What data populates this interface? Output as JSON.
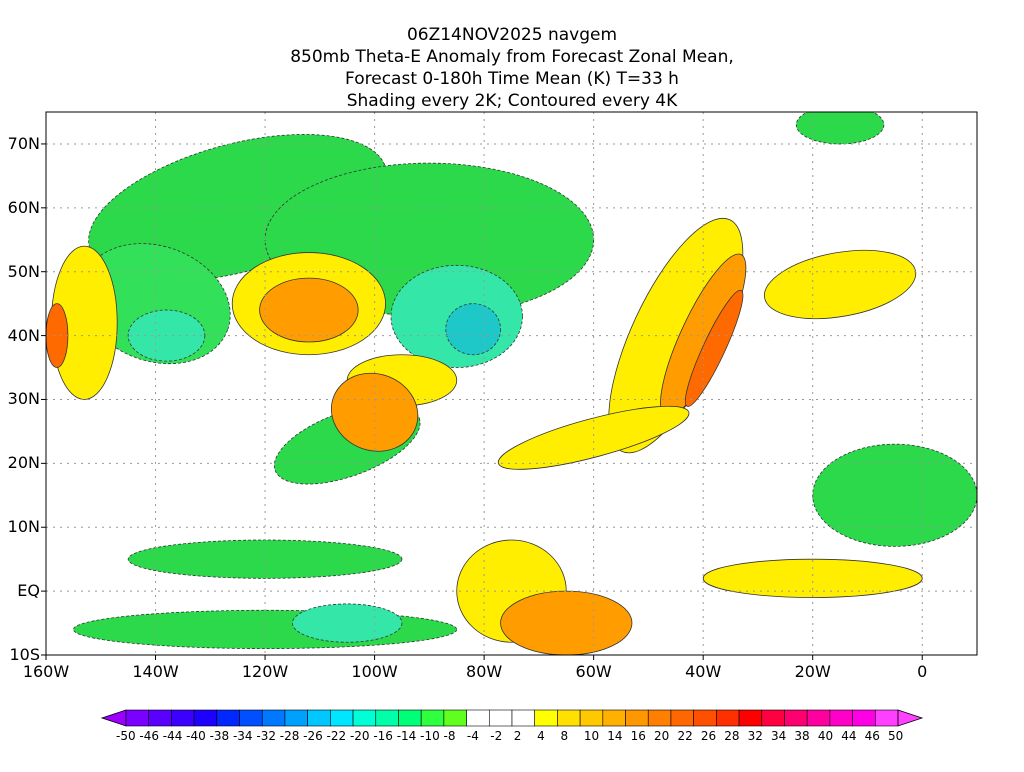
{
  "title_lines": [
    "06Z14NOV2025 navgem",
    "850mb Theta-E Anomaly from Forecast Zonal Mean,",
    "Forecast 0-180h Time Mean (K) T=33 h",
    "Shading every 2K; Contoured every 4K"
  ],
  "map": {
    "projection": "cylindrical equidistant",
    "lon_range": [
      -160,
      10
    ],
    "lat_range": [
      -10,
      75
    ],
    "lat_ticks": [
      "70N",
      "60N",
      "50N",
      "40N",
      "30N",
      "20N",
      "10N",
      "EQ",
      "10S"
    ],
    "lon_ticks": [
      "160W",
      "140W",
      "120W",
      "100W",
      "80W",
      "60W",
      "40W",
      "20W",
      "0"
    ],
    "lat_values": [
      70,
      60,
      50,
      40,
      30,
      20,
      10,
      0,
      -10
    ],
    "lon_values": [
      -160,
      -140,
      -120,
      -100,
      -80,
      -60,
      -40,
      -20,
      0
    ],
    "gridlines": "dotted",
    "field": "850mb Theta-E anomaly (K)"
  },
  "colorbar": {
    "labels": [
      "-50",
      "-46",
      "-44",
      "-40",
      "-38",
      "-34",
      "-32",
      "-28",
      "-26",
      "-22",
      "-20",
      "-16",
      "-14",
      "-10",
      "-8",
      "-4",
      "-2",
      "2",
      "4",
      "8",
      "10",
      "14",
      "16",
      "20",
      "22",
      "26",
      "28",
      "32",
      "34",
      "38",
      "40",
      "44",
      "46",
      "50"
    ],
    "colors": [
      "#7a00ff",
      "#5a00ff",
      "#3c00ff",
      "#1e00ff",
      "#0028ff",
      "#0050ff",
      "#0078ff",
      "#00a0ff",
      "#00c8ff",
      "#00e6ff",
      "#00ffd6",
      "#00ffa8",
      "#00ff78",
      "#30ff40",
      "#60ff20",
      "#ffffff",
      "#ffffff",
      "#ffffff",
      "#ffff00",
      "#ffe000",
      "#ffc800",
      "#ffb000",
      "#ff9800",
      "#ff8000",
      "#ff6800",
      "#ff5000",
      "#ff3000",
      "#ff0000",
      "#ff0040",
      "#ff0070",
      "#ff00a0",
      "#ff00c8",
      "#ff00e6",
      "#ff40ff"
    ]
  },
  "regions": [
    {
      "color": "#2bd94a",
      "lon": -125,
      "lat": 60,
      "rx": 28,
      "ry": 10,
      "rot": -15
    },
    {
      "color": "#2bd94a",
      "lon": -90,
      "lat": 55,
      "rx": 30,
      "ry": 12,
      "rot": 0
    },
    {
      "color": "#33e05a",
      "lon": -140,
      "lat": 45,
      "rx": 14,
      "ry": 9,
      "rot": 20
    },
    {
      "color": "#34e6a8",
      "lon": -138,
      "lat": 40,
      "rx": 7,
      "ry": 4,
      "rot": 0
    },
    {
      "color": "#34e6a8",
      "lon": -85,
      "lat": 43,
      "rx": 12,
      "ry": 8,
      "rot": 0
    },
    {
      "color": "#1ec8c8",
      "lon": -82,
      "lat": 41,
      "rx": 5,
      "ry": 4,
      "rot": 0
    },
    {
      "color": "#2bd94a",
      "lon": -105,
      "lat": 23,
      "rx": 14,
      "ry": 5,
      "rot": -20
    },
    {
      "color": "#2bd94a",
      "lon": -120,
      "lat": 5,
      "rx": 25,
      "ry": 3,
      "rot": 0
    },
    {
      "color": "#2bd94a",
      "lon": -120,
      "lat": -6,
      "rx": 35,
      "ry": 3,
      "rot": 0
    },
    {
      "color": "#34e6a8",
      "lon": -105,
      "lat": -5,
      "rx": 10,
      "ry": 3,
      "rot": 0
    },
    {
      "color": "#2bd94a",
      "lon": -5,
      "lat": 15,
      "rx": 15,
      "ry": 8,
      "rot": 0
    },
    {
      "color": "#2bd94a",
      "lon": -15,
      "lat": 73,
      "rx": 8,
      "ry": 3,
      "rot": 0
    },
    {
      "color": "#ffee00",
      "lon": -112,
      "lat": 45,
      "rx": 14,
      "ry": 8,
      "rot": 0
    },
    {
      "color": "#ff9d00",
      "lon": -112,
      "lat": 44,
      "rx": 9,
      "ry": 5,
      "rot": 0
    },
    {
      "color": "#ffee00",
      "lon": -95,
      "lat": 33,
      "rx": 10,
      "ry": 4,
      "rot": 0
    },
    {
      "color": "#ff9d00",
      "lon": -100,
      "lat": 28,
      "rx": 8,
      "ry": 6,
      "rot": 20
    },
    {
      "color": "#ffee00",
      "lon": -45,
      "lat": 40,
      "rx": 8,
      "ry": 20,
      "rot": 25
    },
    {
      "color": "#ff9d00",
      "lon": -40,
      "lat": 40,
      "rx": 4,
      "ry": 14,
      "rot": 25
    },
    {
      "color": "#ff6a00",
      "lon": -38,
      "lat": 38,
      "rx": 2,
      "ry": 10,
      "rot": 25
    },
    {
      "color": "#ffee00",
      "lon": -15,
      "lat": 48,
      "rx": 14,
      "ry": 5,
      "rot": -10
    },
    {
      "color": "#ffee00",
      "lon": -153,
      "lat": 42,
      "rx": 6,
      "ry": 12,
      "rot": 0
    },
    {
      "color": "#ff6a00",
      "lon": -158,
      "lat": 40,
      "rx": 2,
      "ry": 5,
      "rot": 0
    },
    {
      "color": "#ffee00",
      "lon": -75,
      "lat": 0,
      "rx": 10,
      "ry": 8,
      "rot": 0
    },
    {
      "color": "#ff9d00",
      "lon": -65,
      "lat": -5,
      "rx": 12,
      "ry": 5,
      "rot": 0
    },
    {
      "color": "#ffee00",
      "lon": -20,
      "lat": 2,
      "rx": 20,
      "ry": 3,
      "rot": 0
    },
    {
      "color": "#ffee00",
      "lon": -60,
      "lat": 24,
      "rx": 18,
      "ry": 3,
      "rot": -15
    }
  ]
}
